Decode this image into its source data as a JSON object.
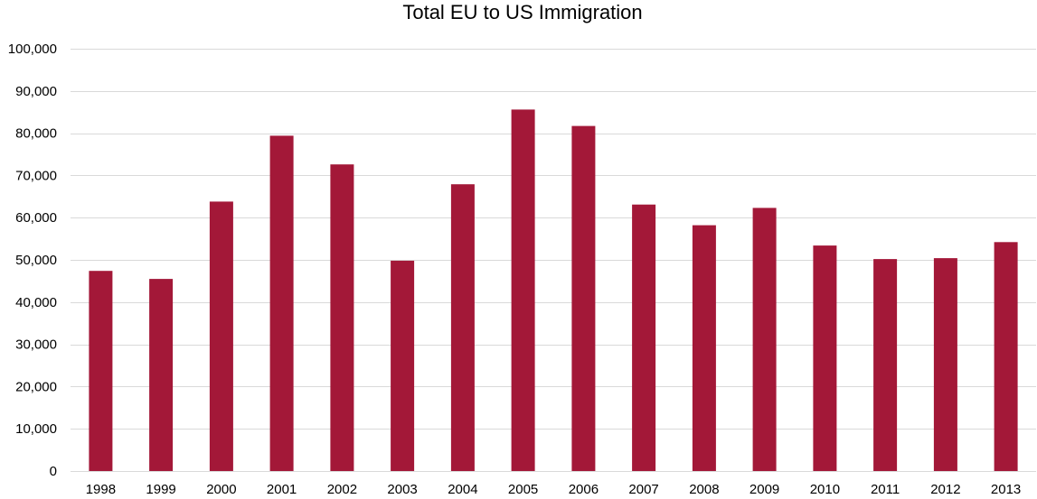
{
  "chart_data": {
    "type": "bar",
    "title": "Total EU to US Immigration",
    "xlabel": "",
    "ylabel": "",
    "categories": [
      "1998",
      "1999",
      "2000",
      "2001",
      "2002",
      "2003",
      "2004",
      "2005",
      "2006",
      "2007",
      "2008",
      "2009",
      "2010",
      "2011",
      "2012",
      "2013"
    ],
    "values": [
      47400,
      45500,
      63800,
      79400,
      72600,
      49800,
      67900,
      85600,
      81700,
      63100,
      58200,
      62300,
      53400,
      50200,
      50400,
      54200
    ],
    "ylim": [
      0,
      100000
    ],
    "yticks": [
      0,
      10000,
      20000,
      30000,
      40000,
      50000,
      60000,
      70000,
      80000,
      90000,
      100000
    ],
    "ytick_labels": [
      "0",
      "10,000",
      "20,000",
      "30,000",
      "40,000",
      "50,000",
      "60,000",
      "70,000",
      "80,000",
      "90,000",
      "100,000"
    ],
    "grid": true,
    "legend": "none",
    "bar_color": "#a31838",
    "grid_color": "#d9d9d9"
  }
}
